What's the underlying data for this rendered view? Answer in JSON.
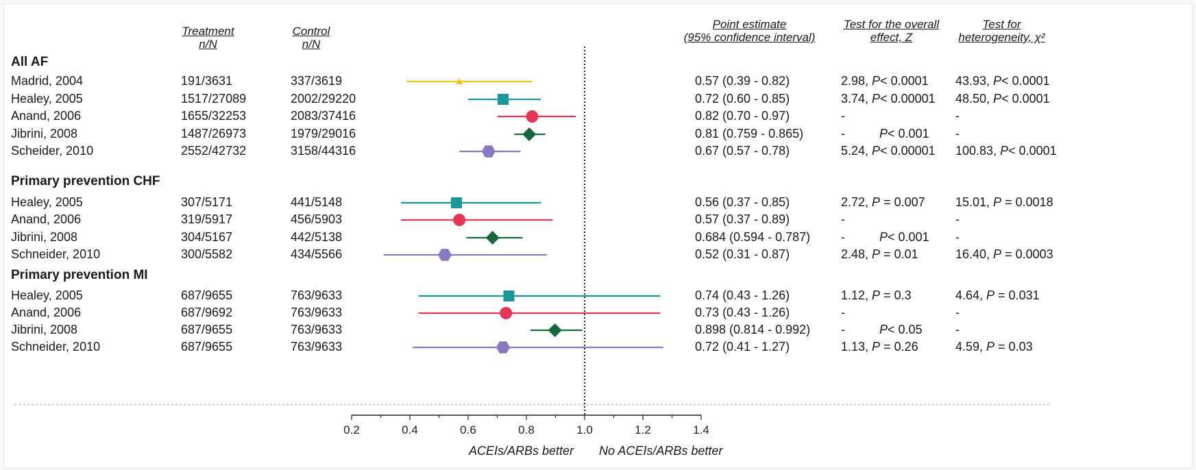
{
  "headers": {
    "treatment": [
      "Treatment",
      "n/N"
    ],
    "control": [
      "Control",
      "n/N"
    ],
    "point_estimate": [
      "Point estimate",
      "(95% confidence interval)"
    ],
    "overall_effect": [
      "Test for the overall",
      "effect, Z"
    ],
    "heterogeneity": [
      "Test for",
      "heterogeneity, χ²"
    ]
  },
  "axis": {
    "left_caption": "ACEIs/ARBs better",
    "right_caption": "No ACEIs/ARBs better"
  },
  "colors": {
    "Madrid": "#f2c318",
    "Healey": "#1a9899",
    "Anand": "#e63555",
    "Jibrini": "#14683a",
    "Schneider": "#8a78c0"
  },
  "sections": [
    {
      "title": "All AF",
      "rows": [
        {
          "study": "Madrid, 2004",
          "treatment": "191/3631",
          "control": "337/3619",
          "estimate": "0.57 (0.39 - 0.82)",
          "overall": [
            "2.98, ",
            "P",
            "< 0.0001"
          ],
          "hetero": [
            "43.93, ",
            "P",
            "< 0.0001"
          ]
        },
        {
          "study": "Healey, 2005",
          "treatment": "1517/27089",
          "control": "2002/29220",
          "estimate": "0.72 (0.60 - 0.85)",
          "overall": [
            "3.74, ",
            "P",
            "< 0.00001"
          ],
          "hetero": [
            "48.50, ",
            "P",
            "< 0.0001"
          ]
        },
        {
          "study": "Anand, 2006",
          "treatment": "1655/32253",
          "control": "2083/37416",
          "estimate": "0.82 (0.70 - 0.97)",
          "overall": [
            "-",
            "",
            ""
          ],
          "hetero": [
            "-",
            "",
            ""
          ]
        },
        {
          "study": "Jibrini, 2008",
          "treatment": "1487/26973",
          "control": "1979/29016",
          "estimate": "0.81 (0.759 - 0.865)",
          "overall": [
            "-          ",
            "P",
            "< 0.001"
          ],
          "hetero": [
            "-",
            "",
            ""
          ]
        },
        {
          "study": "Scheider, 2010",
          "treatment": "2552/42732",
          "control": "3158/44316",
          "estimate": "0.67 (0.57 - 0.78)",
          "overall": [
            "5.24, ",
            "P",
            "< 0.00001"
          ],
          "hetero": [
            "100.83, ",
            "P",
            "< 0.0001"
          ]
        }
      ]
    },
    {
      "title": "Primary prevention CHF",
      "rows": [
        {
          "study": "Healey, 2005",
          "treatment": "307/5171",
          "control": "441/5148",
          "estimate": "0.56 (0.37 - 0.85)",
          "overall": [
            "2.72, ",
            "P",
            " = 0.007"
          ],
          "hetero": [
            "15.01, ",
            "P",
            " = 0.0018"
          ]
        },
        {
          "study": "Anand, 2006",
          "treatment": "319/5917",
          "control": "456/5903",
          "estimate": "0.57 (0.37 - 0.89)",
          "overall": [
            "-",
            "",
            ""
          ],
          "hetero": [
            "-",
            "",
            ""
          ]
        },
        {
          "study": "Jibrini, 2008",
          "treatment": "304/5167",
          "control": "442/5138",
          "estimate": "0.684 (0.594 - 0.787)",
          "overall": [
            "-          ",
            "P",
            "< 0.001"
          ],
          "hetero": [
            "-",
            "",
            ""
          ]
        },
        {
          "study": "Schneider, 2010",
          "treatment": "300/5582",
          "control": "434/5566",
          "estimate": "0.52 (0.31 - 0.87)",
          "overall": [
            "2.48, ",
            "P",
            " = 0.01"
          ],
          "hetero": [
            "16.40, ",
            "P",
            " = 0.0003"
          ]
        }
      ]
    },
    {
      "title": "Primary prevention MI",
      "rows": [
        {
          "study": "Healey, 2005",
          "treatment": "687/9655",
          "control": "763/9633",
          "estimate": "0.74 (0.43 - 1.26)",
          "overall": [
            "1.12, ",
            "P",
            " = 0.3"
          ],
          "hetero": [
            "4.64, ",
            "P",
            " = 0.031"
          ]
        },
        {
          "study": "Anand, 2006",
          "treatment": "687/9692",
          "control": "763/9633",
          "estimate": "0.73 (0.43 - 1.26)",
          "overall": [
            "-",
            "",
            ""
          ],
          "hetero": [
            "-",
            "",
            ""
          ]
        },
        {
          "study": "Jibrini, 2008",
          "treatment": "687/9655",
          "control": "763/9633",
          "estimate": "0.898 (0.814 - 0.992)",
          "overall": [
            "-          ",
            "P",
            "< 0.05"
          ],
          "hetero": [
            "-",
            "",
            ""
          ]
        },
        {
          "study": "Schneider, 2010",
          "treatment": "687/9655",
          "control": "763/9633",
          "estimate": "0.72 (0.41 - 1.27)",
          "overall": [
            "1.13, ",
            "P",
            " = 0.26"
          ],
          "hetero": [
            "4.59, ",
            "P",
            " = 0.03"
          ]
        }
      ]
    }
  ],
  "chart_data": {
    "type": "scatter",
    "subtype": "forest-plot",
    "xlim": [
      0.2,
      1.4
    ],
    "xticks": [
      "0.2",
      "0.4",
      "0.6",
      "0.8",
      "1.0",
      "1.2",
      "1.4"
    ],
    "reference_line": 1.0,
    "grid": false,
    "series": [
      {
        "name": "All AF",
        "points": [
          {
            "study": "Madrid, 2004",
            "estimate": 0.57,
            "lower": 0.39,
            "upper": 0.82,
            "marker": "triangle",
            "color": "#f2c318"
          },
          {
            "study": "Healey, 2005",
            "estimate": 0.72,
            "lower": 0.6,
            "upper": 0.85,
            "marker": "square",
            "color": "#1a9899"
          },
          {
            "study": "Anand, 2006",
            "estimate": 0.82,
            "lower": 0.7,
            "upper": 0.97,
            "marker": "circle",
            "color": "#e63555"
          },
          {
            "study": "Jibrini, 2008",
            "estimate": 0.81,
            "lower": 0.759,
            "upper": 0.865,
            "marker": "diamond",
            "color": "#14683a"
          },
          {
            "study": "Scheider, 2010",
            "estimate": 0.67,
            "lower": 0.57,
            "upper": 0.78,
            "marker": "hexagon",
            "color": "#8a78c0"
          }
        ]
      },
      {
        "name": "Primary prevention CHF",
        "points": [
          {
            "study": "Healey, 2005",
            "estimate": 0.56,
            "lower": 0.37,
            "upper": 0.85,
            "marker": "square",
            "color": "#1a9899"
          },
          {
            "study": "Anand, 2006",
            "estimate": 0.57,
            "lower": 0.37,
            "upper": 0.89,
            "marker": "circle",
            "color": "#e63555"
          },
          {
            "study": "Jibrini, 2008",
            "estimate": 0.684,
            "lower": 0.594,
            "upper": 0.787,
            "marker": "diamond",
            "color": "#14683a"
          },
          {
            "study": "Schneider, 2010",
            "estimate": 0.52,
            "lower": 0.31,
            "upper": 0.87,
            "marker": "hexagon",
            "color": "#8a78c0"
          }
        ]
      },
      {
        "name": "Primary prevention MI",
        "points": [
          {
            "study": "Healey, 2005",
            "estimate": 0.74,
            "lower": 0.43,
            "upper": 1.26,
            "marker": "square",
            "color": "#1a9899"
          },
          {
            "study": "Anand, 2006",
            "estimate": 0.73,
            "lower": 0.43,
            "upper": 1.26,
            "marker": "circle",
            "color": "#e63555"
          },
          {
            "study": "Jibrini, 2008",
            "estimate": 0.898,
            "lower": 0.814,
            "upper": 0.992,
            "marker": "diamond",
            "color": "#14683a"
          },
          {
            "study": "Schneider, 2010",
            "estimate": 0.72,
            "lower": 0.41,
            "upper": 1.27,
            "marker": "hexagon",
            "color": "#8a78c0"
          }
        ]
      }
    ]
  }
}
